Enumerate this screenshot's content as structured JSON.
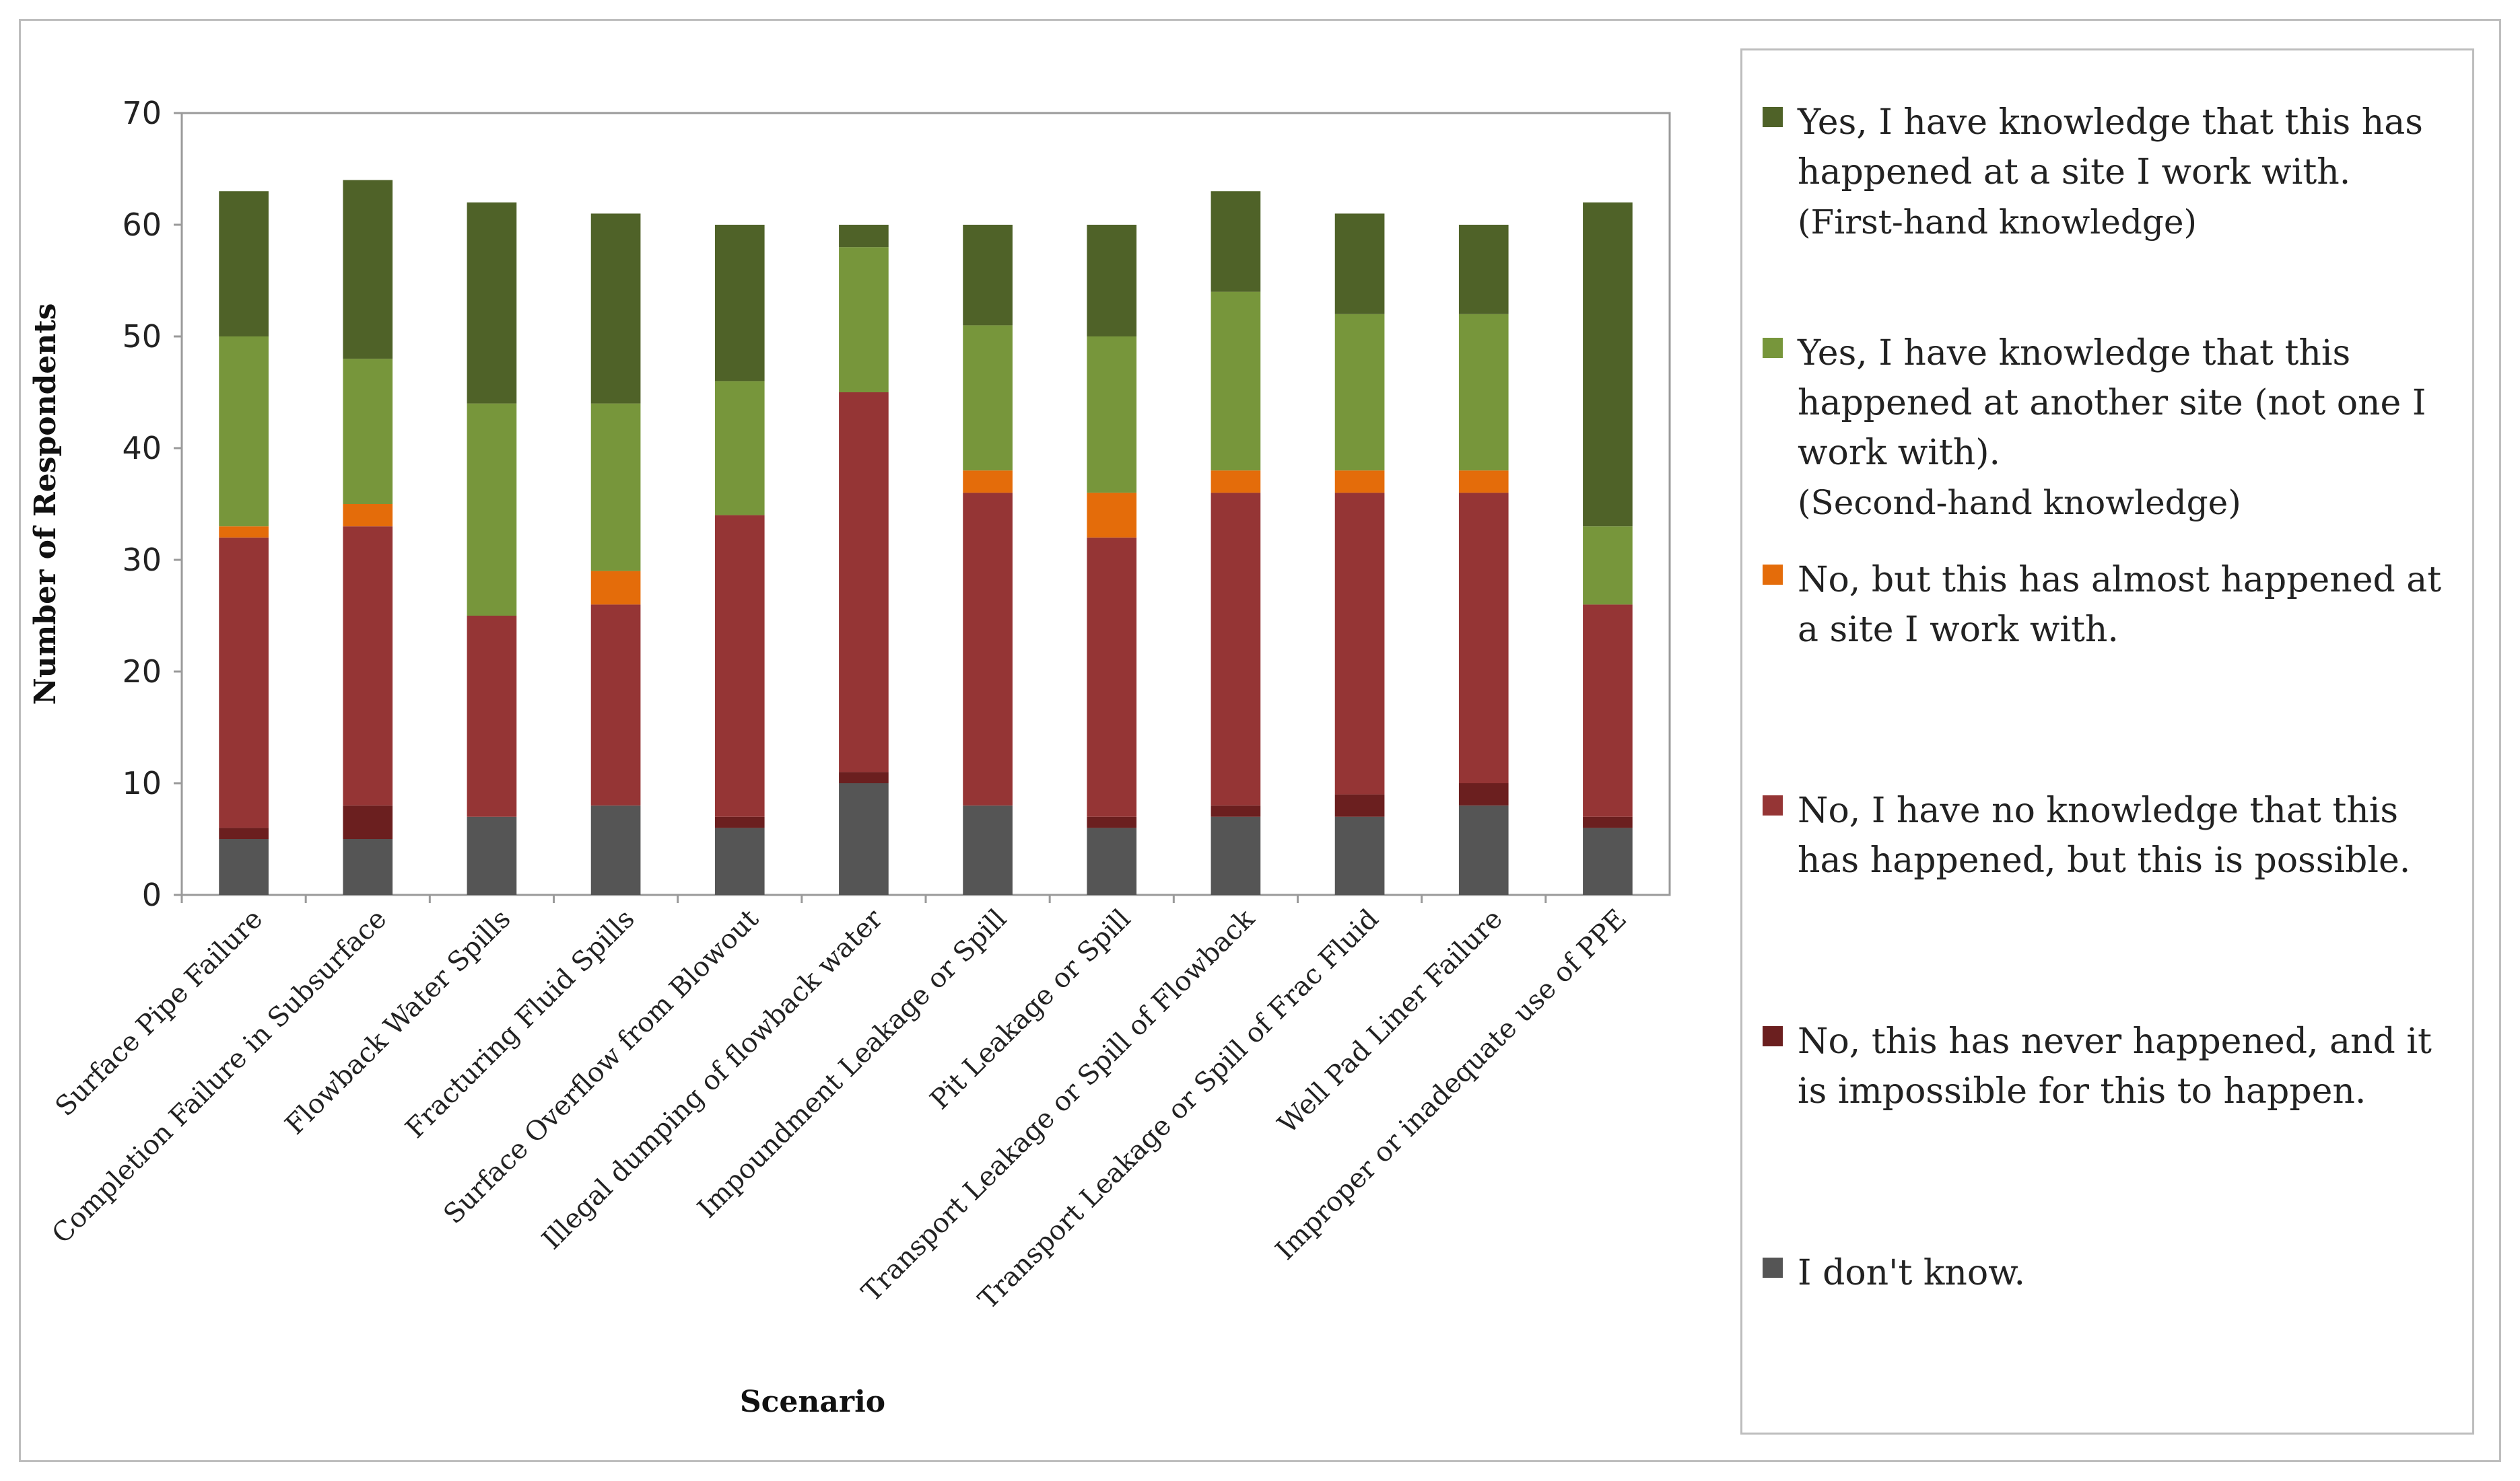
{
  "chart_data": {
    "type": "bar",
    "stacked": true,
    "title": "",
    "xlabel": "Scenario",
    "ylabel": "Number of Respondents",
    "ylim": [
      0,
      70
    ],
    "yticks": [
      0,
      10,
      20,
      30,
      40,
      50,
      60,
      70
    ],
    "grid": false,
    "legend_position": "right",
    "categories": [
      "Surface Pipe Failure",
      "Completion Failure in Subsurface",
      "Flowback Water Spills",
      "Fracturing Fluid Spills",
      "Surface Overflow from Blowout",
      "Illegal dumping of flowback water",
      "Impoundment Leakage or Spill",
      "Pit Leakage or Spill",
      "Transport Leakage or Spill of Flowback",
      "Transport Leakage or Spill of Frac Fluid",
      "Well Pad Liner Failure",
      "Improper or inadequate use of PPE"
    ],
    "series": [
      {
        "name": "I don't know.",
        "color": "#555555",
        "values": [
          5,
          5,
          7,
          8,
          6,
          10,
          8,
          6,
          7,
          7,
          8,
          6
        ]
      },
      {
        "name": "No, this has never happened, and it is impossible for this to happen.",
        "color": "#6b1f1f",
        "values": [
          1,
          3,
          0,
          0,
          1,
          1,
          0,
          1,
          1,
          2,
          2,
          1
        ]
      },
      {
        "name": "No, I have no knowledge that this has happened, but this is possible.",
        "color": "#953535",
        "values": [
          26,
          25,
          18,
          18,
          27,
          34,
          28,
          25,
          28,
          27,
          26,
          19
        ]
      },
      {
        "name": "No, but this has almost happened at a site I work with.",
        "color": "#e46c0a",
        "values": [
          1,
          2,
          0,
          3,
          0,
          0,
          2,
          4,
          2,
          2,
          2,
          0
        ]
      },
      {
        "name": "Yes, I have knowledge that this happened at another site (not one I work with).",
        "color": "#77963b",
        "values": [
          17,
          13,
          19,
          15,
          12,
          13,
          13,
          14,
          16,
          14,
          14,
          7
        ]
      },
      {
        "name": "Yes, I have knowledge that this has happened at a site I work with.",
        "color": "#4f6228",
        "values": [
          13,
          16,
          18,
          17,
          14,
          2,
          9,
          10,
          9,
          9,
          8,
          29
        ]
      }
    ]
  },
  "legend": [
    {
      "key": "yes_first",
      "color": "#4f6228",
      "text": "Yes, I have knowledge that this has happened at a site I work with.",
      "sub": "(First-hand knowledge)"
    },
    {
      "key": "yes_second",
      "color": "#77963b",
      "text": "Yes, I have knowledge that this happened at another site (not one I work with).",
      "sub": "(Second-hand knowledge)"
    },
    {
      "key": "almost",
      "color": "#e46c0a",
      "text": "No, but this has almost happened at a site I work with.",
      "sub": ""
    },
    {
      "key": "possible",
      "color": "#953535",
      "text": "No, I have no knowledge that this has happened, but this is possible.",
      "sub": ""
    },
    {
      "key": "impossible",
      "color": "#6b1f1f",
      "text": "No, this has never happened, and it is impossible for this to happen.",
      "sub": ""
    },
    {
      "key": "dont_know",
      "color": "#555555",
      "text": "I don't know.",
      "sub": ""
    }
  ]
}
